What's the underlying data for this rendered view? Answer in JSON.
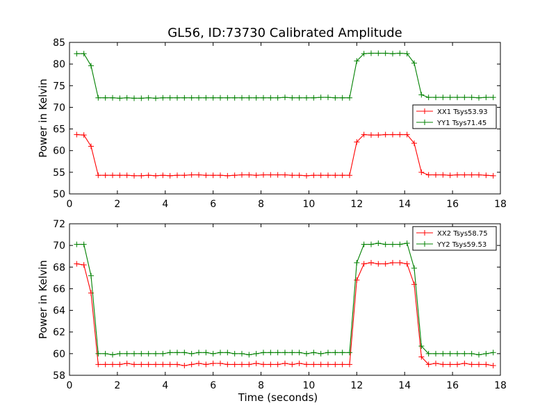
{
  "title": "GL56, ID:73730 Calibrated Amplitude",
  "chart_data": [
    {
      "type": "line",
      "ylabel": "Power in Kelvin",
      "xlabel": "",
      "xlim": [
        0,
        18
      ],
      "ylim": [
        50,
        85
      ],
      "xticks": [
        "0",
        "2",
        "4",
        "6",
        "8",
        "10",
        "12",
        "14",
        "16",
        "18"
      ],
      "yticks": [
        "50",
        "55",
        "60",
        "65",
        "70",
        "75",
        "80",
        "85"
      ],
      "grid": false,
      "legend_position": "right",
      "x": [
        0.3,
        0.6,
        0.9,
        1.2,
        1.5,
        1.8,
        2.1,
        2.4,
        2.7,
        3.0,
        3.3,
        3.6,
        3.9,
        4.2,
        4.5,
        4.8,
        5.1,
        5.4,
        5.7,
        6.0,
        6.3,
        6.6,
        6.9,
        7.2,
        7.5,
        7.8,
        8.1,
        8.4,
        8.7,
        9.0,
        9.3,
        9.6,
        9.9,
        10.2,
        10.5,
        10.8,
        11.1,
        11.4,
        11.7,
        12.0,
        12.3,
        12.6,
        12.9,
        13.2,
        13.5,
        13.8,
        14.1,
        14.4,
        14.7,
        15.0,
        15.3,
        15.6,
        15.9,
        16.2,
        16.5,
        16.8,
        17.1,
        17.4,
        17.7
      ],
      "series": [
        {
          "name": "XX1 Tsys53.93",
          "color": "#ff0000",
          "values": [
            63.7,
            63.6,
            61.0,
            54.3,
            54.3,
            54.3,
            54.3,
            54.3,
            54.2,
            54.2,
            54.3,
            54.2,
            54.3,
            54.2,
            54.3,
            54.3,
            54.4,
            54.4,
            54.3,
            54.3,
            54.3,
            54.2,
            54.3,
            54.4,
            54.4,
            54.3,
            54.4,
            54.4,
            54.4,
            54.4,
            54.3,
            54.3,
            54.2,
            54.3,
            54.3,
            54.3,
            54.3,
            54.3,
            54.3,
            62.0,
            63.7,
            63.6,
            63.6,
            63.7,
            63.7,
            63.7,
            63.7,
            61.7,
            55.0,
            54.4,
            54.4,
            54.4,
            54.3,
            54.4,
            54.4,
            54.4,
            54.4,
            54.3,
            54.2
          ]
        },
        {
          "name": "YY1 Tsys71.45",
          "color": "#008000",
          "values": [
            82.4,
            82.4,
            79.6,
            72.2,
            72.2,
            72.2,
            72.1,
            72.2,
            72.1,
            72.1,
            72.2,
            72.1,
            72.2,
            72.2,
            72.2,
            72.2,
            72.2,
            72.2,
            72.2,
            72.2,
            72.2,
            72.2,
            72.2,
            72.2,
            72.2,
            72.2,
            72.2,
            72.2,
            72.2,
            72.3,
            72.2,
            72.2,
            72.2,
            72.2,
            72.3,
            72.3,
            72.2,
            72.2,
            72.2,
            80.7,
            82.4,
            82.5,
            82.5,
            82.5,
            82.4,
            82.5,
            82.4,
            80.2,
            72.9,
            72.3,
            72.3,
            72.3,
            72.3,
            72.3,
            72.3,
            72.3,
            72.2,
            72.3,
            72.3
          ]
        }
      ]
    },
    {
      "type": "line",
      "ylabel": "Power in Kelvin",
      "xlabel": "Time (seconds)",
      "xlim": [
        0,
        18
      ],
      "ylim": [
        58,
        72
      ],
      "xticks": [
        "0",
        "2",
        "4",
        "6",
        "8",
        "10",
        "12",
        "14",
        "16",
        "18"
      ],
      "yticks": [
        "58",
        "60",
        "62",
        "64",
        "66",
        "68",
        "70",
        "72"
      ],
      "grid": false,
      "legend_position": "top-right",
      "x": [
        0.3,
        0.6,
        0.9,
        1.2,
        1.5,
        1.8,
        2.1,
        2.4,
        2.7,
        3.0,
        3.3,
        3.6,
        3.9,
        4.2,
        4.5,
        4.8,
        5.1,
        5.4,
        5.7,
        6.0,
        6.3,
        6.6,
        6.9,
        7.2,
        7.5,
        7.8,
        8.1,
        8.4,
        8.7,
        9.0,
        9.3,
        9.6,
        9.9,
        10.2,
        10.5,
        10.8,
        11.1,
        11.4,
        11.7,
        12.0,
        12.3,
        12.6,
        12.9,
        13.2,
        13.5,
        13.8,
        14.1,
        14.4,
        14.7,
        15.0,
        15.3,
        15.6,
        15.9,
        16.2,
        16.5,
        16.8,
        17.1,
        17.4,
        17.7
      ],
      "series": [
        {
          "name": "XX2 Tsys58.75",
          "color": "#ff0000",
          "values": [
            68.3,
            68.2,
            65.6,
            59.0,
            59.0,
            59.0,
            59.0,
            59.1,
            59.0,
            59.0,
            59.0,
            59.0,
            59.0,
            59.0,
            59.0,
            58.9,
            59.0,
            59.1,
            59.0,
            59.1,
            59.1,
            59.0,
            59.0,
            59.0,
            59.0,
            59.1,
            59.0,
            59.0,
            59.0,
            59.1,
            59.0,
            59.1,
            59.0,
            59.0,
            59.0,
            59.0,
            59.0,
            59.0,
            59.0,
            66.8,
            68.3,
            68.4,
            68.3,
            68.3,
            68.4,
            68.4,
            68.3,
            66.4,
            59.7,
            59.0,
            59.1,
            59.0,
            59.0,
            59.0,
            59.1,
            59.0,
            59.0,
            59.0,
            58.9
          ]
        },
        {
          "name": "YY2 Tsys59.53",
          "color": "#008000",
          "values": [
            70.1,
            70.1,
            67.2,
            60.0,
            60.0,
            59.9,
            60.0,
            60.0,
            60.0,
            60.0,
            60.0,
            60.0,
            60.0,
            60.1,
            60.1,
            60.1,
            60.0,
            60.1,
            60.1,
            60.0,
            60.1,
            60.1,
            60.0,
            60.0,
            59.9,
            60.0,
            60.1,
            60.1,
            60.1,
            60.1,
            60.1,
            60.1,
            60.0,
            60.1,
            60.0,
            60.1,
            60.1,
            60.1,
            60.1,
            68.4,
            70.1,
            70.1,
            70.2,
            70.1,
            70.1,
            70.1,
            70.2,
            67.9,
            60.7,
            60.0,
            60.0,
            60.0,
            60.0,
            60.0,
            60.0,
            60.0,
            59.9,
            60.0,
            60.1
          ]
        }
      ]
    }
  ]
}
